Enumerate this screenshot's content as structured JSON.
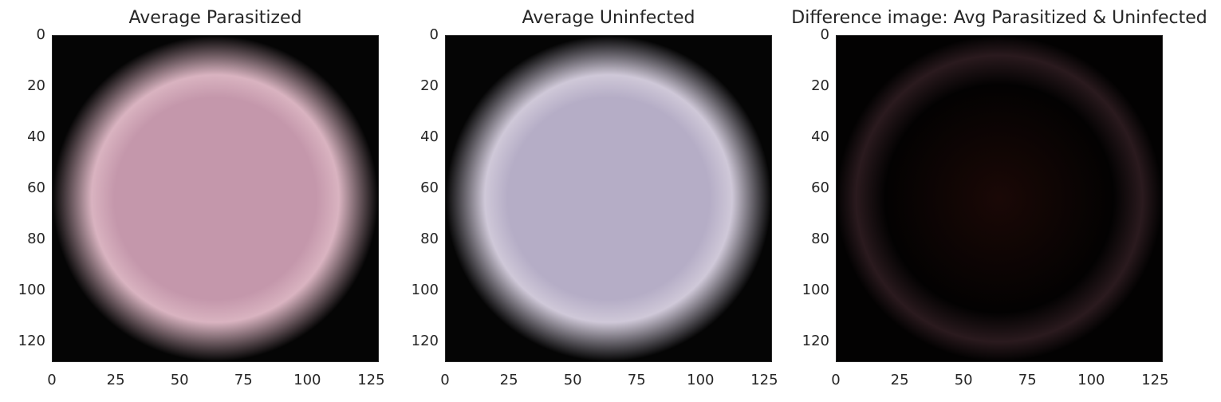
{
  "chart_data": [
    {
      "type": "heatmap",
      "title": "Average Parasitized",
      "image_size": [
        128,
        128
      ],
      "x_ticks": [
        "0",
        "25",
        "50",
        "75",
        "100",
        "125"
      ],
      "y_ticks": [
        "0",
        "20",
        "40",
        "60",
        "80",
        "100",
        "120"
      ],
      "xlim": [
        0,
        128
      ],
      "ylim": [
        128,
        0
      ],
      "background_color": "#050505",
      "center_color": "#c497ab",
      "rim_color": "#d9b3c0",
      "grid": false
    },
    {
      "type": "heatmap",
      "title": "Average Uninfected",
      "image_size": [
        128,
        128
      ],
      "x_ticks": [
        "0",
        "25",
        "50",
        "75",
        "100",
        "125"
      ],
      "y_ticks": [
        "0",
        "20",
        "40",
        "60",
        "80",
        "100",
        "120"
      ],
      "xlim": [
        0,
        128
      ],
      "ylim": [
        128,
        0
      ],
      "background_color": "#050505",
      "center_color": "#b5adc6",
      "rim_color": "#cfc8d8",
      "grid": false
    },
    {
      "type": "heatmap",
      "title": "Difference image: Avg Parasitized & Uninfected",
      "image_size": [
        128,
        128
      ],
      "x_ticks": [
        "0",
        "25",
        "50",
        "75",
        "100",
        "125"
      ],
      "y_ticks": [
        "0",
        "20",
        "40",
        "60",
        "80",
        "100",
        "120"
      ],
      "xlim": [
        0,
        128
      ],
      "ylim": [
        128,
        0
      ],
      "background_color": "#030202",
      "center_color": "#1a0806",
      "rim_color": "#2a1a1e",
      "grid": false
    }
  ]
}
